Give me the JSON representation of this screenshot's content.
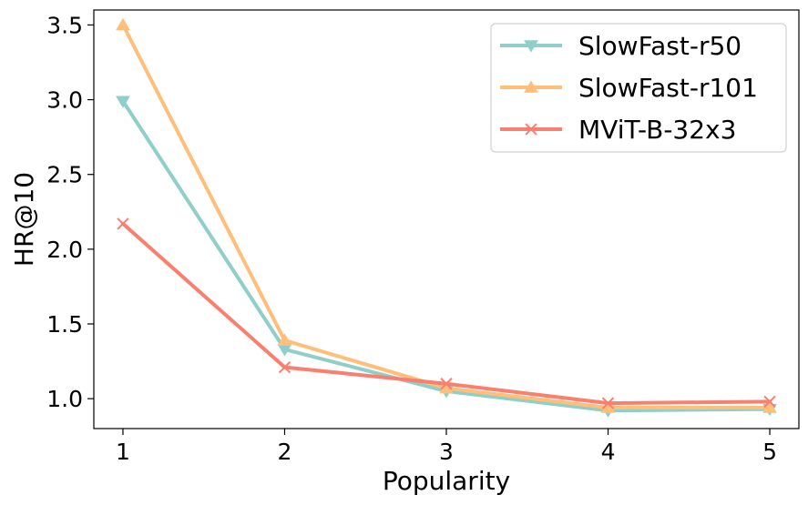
{
  "chart_data": {
    "type": "line",
    "title": "",
    "xlabel": "Popularity",
    "ylabel": "HR@10",
    "x": [
      1,
      2,
      3,
      4,
      5
    ],
    "xticks": [
      "1",
      "2",
      "3",
      "4",
      "5"
    ],
    "yticks": [
      "1.0",
      "1.5",
      "2.0",
      "2.5",
      "3.0",
      "3.5"
    ],
    "ytick_values": [
      1.0,
      1.5,
      2.0,
      2.5,
      3.0,
      3.5
    ],
    "xlim": [
      0.82,
      5.18
    ],
    "ylim": [
      0.8,
      3.6
    ],
    "grid": false,
    "legend_position": "top-right",
    "series": [
      {
        "name": "SlowFast-r50",
        "values": [
          2.99,
          1.33,
          1.05,
          0.92,
          0.93
        ],
        "color": "#8ecfc9",
        "marker": "triangle-down"
      },
      {
        "name": "SlowFast-r101",
        "values": [
          3.5,
          1.39,
          1.07,
          0.94,
          0.94
        ],
        "color": "#ffbe7a",
        "marker": "triangle-up"
      },
      {
        "name": "MViT-B-32x3",
        "values": [
          2.17,
          1.21,
          1.1,
          0.97,
          0.98
        ],
        "color": "#fa7f6f",
        "marker": "x"
      }
    ]
  }
}
